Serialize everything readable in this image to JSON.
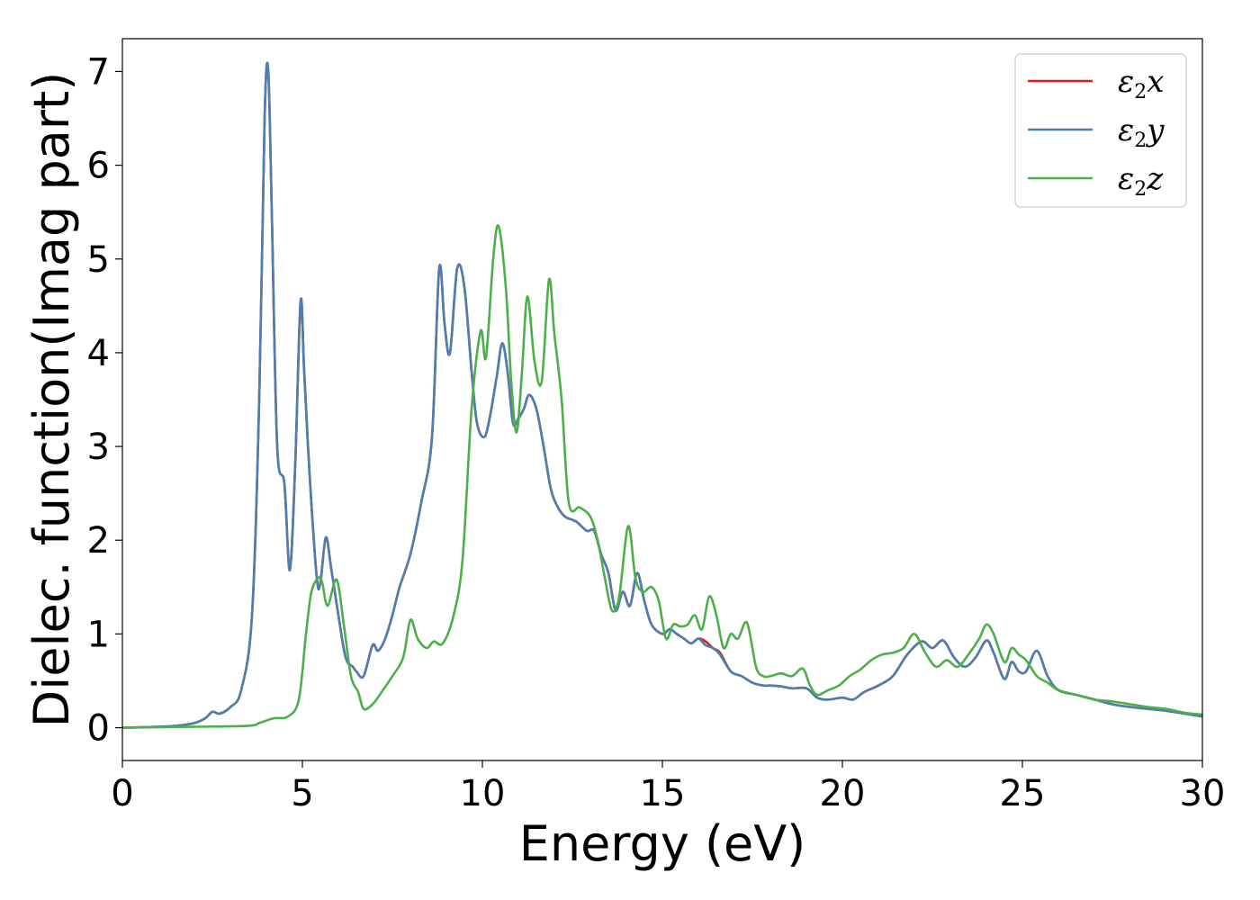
{
  "chart_data": {
    "type": "line",
    "xlabel": "Energy (eV)",
    "ylabel": "Dielec. function(Imag part)",
    "xlim": [
      0,
      30
    ],
    "ylim": [
      -0.35,
      7.35
    ],
    "xticks": [
      0,
      5,
      10,
      15,
      20,
      25,
      30
    ],
    "yticks": [
      0,
      1,
      2,
      3,
      4,
      5,
      6,
      7
    ],
    "grid": false,
    "legend_position": "top-right",
    "series": [
      {
        "name": "ε₂x",
        "legend_base": "ε",
        "legend_sub": "2",
        "legend_tail": "x",
        "color": "#e41a1c",
        "x": [
          0,
          1,
          1.5,
          2,
          2.3,
          2.5,
          2.7,
          3.0,
          3.3,
          3.6,
          3.8,
          3.95,
          4.05,
          4.15,
          4.3,
          4.5,
          4.65,
          4.8,
          4.95,
          5.05,
          5.2,
          5.4,
          5.5,
          5.65,
          5.8,
          6.0,
          6.2,
          6.4,
          6.5,
          6.7,
          6.95,
          7.1,
          7.3,
          7.5,
          7.7,
          8.0,
          8.3,
          8.6,
          8.8,
          8.95,
          9.1,
          9.3,
          9.5,
          9.7,
          9.85,
          10.05,
          10.2,
          10.4,
          10.55,
          10.7,
          10.85,
          11.0,
          11.15,
          11.3,
          11.5,
          11.7,
          11.9,
          12.1,
          12.3,
          12.6,
          12.9,
          13.1,
          13.3,
          13.5,
          13.7,
          13.9,
          14.1,
          14.3,
          14.5,
          14.7,
          15.0,
          15.2,
          15.4,
          15.6,
          15.8,
          16.0,
          16.2,
          16.4,
          16.6,
          16.9,
          17.2,
          17.5,
          17.8,
          18.0,
          18.3,
          18.6,
          19.0,
          19.3,
          19.6,
          20.0,
          20.3,
          20.6,
          21.0,
          21.4,
          21.8,
          22.2,
          22.5,
          22.8,
          23.1,
          23.4,
          23.7,
          24.0,
          24.2,
          24.5,
          24.7,
          24.9,
          25.1,
          25.4,
          25.7,
          26.0,
          26.5,
          27.0,
          27.5,
          28.0,
          28.5,
          29.0,
          29.5,
          30.0
        ],
        "y": [
          0.0,
          0.01,
          0.02,
          0.05,
          0.1,
          0.17,
          0.15,
          0.22,
          0.4,
          1.2,
          3.5,
          6.5,
          7.02,
          5.5,
          3.0,
          2.6,
          1.68,
          2.8,
          4.55,
          3.8,
          2.7,
          1.6,
          1.55,
          2.03,
          1.7,
          1.2,
          0.75,
          0.65,
          0.6,
          0.55,
          0.88,
          0.82,
          0.95,
          1.2,
          1.5,
          1.85,
          2.4,
          3.1,
          4.9,
          4.3,
          4.0,
          4.9,
          4.7,
          3.8,
          3.25,
          3.1,
          3.3,
          3.75,
          4.1,
          3.8,
          3.25,
          3.3,
          3.4,
          3.55,
          3.4,
          3.0,
          2.55,
          2.35,
          2.25,
          2.2,
          2.1,
          2.1,
          1.85,
          1.65,
          1.25,
          1.45,
          1.3,
          1.65,
          1.35,
          1.1,
          1.0,
          1.05,
          1.0,
          0.95,
          0.9,
          0.95,
          0.92,
          0.85,
          0.8,
          0.6,
          0.55,
          0.48,
          0.45,
          0.45,
          0.44,
          0.42,
          0.42,
          0.32,
          0.3,
          0.32,
          0.3,
          0.38,
          0.45,
          0.55,
          0.78,
          0.92,
          0.85,
          0.93,
          0.75,
          0.65,
          0.75,
          0.93,
          0.8,
          0.52,
          0.7,
          0.6,
          0.6,
          0.82,
          0.55,
          0.4,
          0.35,
          0.3,
          0.25,
          0.22,
          0.2,
          0.18,
          0.15,
          0.12
        ]
      },
      {
        "name": "ε₂y",
        "legend_base": "ε",
        "legend_sub": "2",
        "legend_tail": "y",
        "color": "#4a7fb0",
        "x": [
          0,
          1,
          1.5,
          2,
          2.3,
          2.5,
          2.7,
          3.0,
          3.3,
          3.6,
          3.8,
          3.95,
          4.05,
          4.15,
          4.3,
          4.5,
          4.65,
          4.8,
          4.95,
          5.05,
          5.2,
          5.4,
          5.5,
          5.65,
          5.8,
          6.0,
          6.2,
          6.4,
          6.5,
          6.7,
          6.95,
          7.1,
          7.3,
          7.5,
          7.7,
          8.0,
          8.3,
          8.6,
          8.8,
          8.95,
          9.1,
          9.3,
          9.5,
          9.7,
          9.85,
          10.05,
          10.2,
          10.4,
          10.55,
          10.7,
          10.85,
          11.0,
          11.15,
          11.3,
          11.5,
          11.7,
          11.9,
          12.1,
          12.3,
          12.6,
          12.9,
          13.1,
          13.3,
          13.5,
          13.7,
          13.9,
          14.1,
          14.3,
          14.5,
          14.7,
          15.0,
          15.2,
          15.4,
          15.6,
          15.8,
          16.0,
          16.2,
          16.4,
          16.6,
          16.9,
          17.2,
          17.5,
          17.8,
          18.0,
          18.3,
          18.6,
          19.0,
          19.3,
          19.6,
          20.0,
          20.3,
          20.6,
          21.0,
          21.4,
          21.8,
          22.2,
          22.5,
          22.8,
          23.1,
          23.4,
          23.7,
          24.0,
          24.2,
          24.5,
          24.7,
          24.9,
          25.1,
          25.4,
          25.7,
          26.0,
          26.5,
          27.0,
          27.5,
          28.0,
          28.5,
          29.0,
          29.5,
          30.0
        ],
        "y": [
          0.0,
          0.01,
          0.02,
          0.05,
          0.1,
          0.17,
          0.15,
          0.22,
          0.4,
          1.2,
          3.5,
          6.5,
          7.02,
          5.5,
          3.0,
          2.6,
          1.68,
          2.8,
          4.55,
          3.8,
          2.7,
          1.6,
          1.55,
          2.03,
          1.7,
          1.2,
          0.75,
          0.65,
          0.6,
          0.55,
          0.88,
          0.82,
          0.95,
          1.2,
          1.5,
          1.85,
          2.4,
          3.1,
          4.9,
          4.3,
          4.0,
          4.9,
          4.7,
          3.8,
          3.25,
          3.1,
          3.3,
          3.75,
          4.1,
          3.8,
          3.25,
          3.3,
          3.4,
          3.55,
          3.4,
          3.0,
          2.55,
          2.35,
          2.25,
          2.2,
          2.1,
          2.1,
          1.85,
          1.65,
          1.25,
          1.45,
          1.3,
          1.65,
          1.35,
          1.1,
          1.0,
          1.05,
          1.0,
          0.95,
          0.9,
          0.95,
          0.88,
          0.85,
          0.78,
          0.6,
          0.55,
          0.48,
          0.45,
          0.45,
          0.44,
          0.42,
          0.42,
          0.32,
          0.3,
          0.32,
          0.3,
          0.38,
          0.45,
          0.55,
          0.78,
          0.92,
          0.85,
          0.93,
          0.75,
          0.65,
          0.75,
          0.93,
          0.8,
          0.52,
          0.7,
          0.6,
          0.6,
          0.82,
          0.55,
          0.4,
          0.35,
          0.3,
          0.25,
          0.22,
          0.2,
          0.18,
          0.15,
          0.12
        ]
      },
      {
        "name": "ε₂z",
        "legend_base": "ε",
        "legend_sub": "2",
        "legend_tail": "z",
        "color": "#4daf4a",
        "x": [
          0,
          2,
          3.5,
          3.8,
          4.2,
          4.6,
          4.9,
          5.1,
          5.25,
          5.45,
          5.55,
          5.7,
          5.95,
          6.15,
          6.35,
          6.55,
          6.7,
          6.95,
          7.2,
          7.5,
          7.8,
          8.0,
          8.2,
          8.45,
          8.65,
          8.9,
          9.2,
          9.45,
          9.7,
          9.95,
          10.1,
          10.3,
          10.45,
          10.65,
          10.8,
          10.95,
          11.1,
          11.25,
          11.45,
          11.65,
          11.85,
          12.0,
          12.2,
          12.4,
          12.7,
          13.0,
          13.2,
          13.4,
          13.6,
          13.8,
          14.05,
          14.25,
          14.45,
          14.7,
          14.9,
          15.1,
          15.3,
          15.5,
          15.7,
          15.9,
          16.1,
          16.3,
          16.5,
          16.7,
          16.9,
          17.1,
          17.35,
          17.6,
          17.8,
          18.0,
          18.3,
          18.6,
          18.9,
          19.1,
          19.3,
          19.6,
          19.9,
          20.2,
          20.5,
          20.8,
          21.1,
          21.4,
          21.7,
          22.0,
          22.3,
          22.6,
          22.9,
          23.2,
          23.5,
          23.8,
          24.0,
          24.2,
          24.5,
          24.7,
          24.9,
          25.1,
          25.4,
          25.7,
          26.0,
          26.5,
          27.0,
          27.5,
          28.0,
          28.5,
          29.0,
          29.5,
          30.0
        ],
        "y": [
          0.0,
          0.01,
          0.02,
          0.05,
          0.1,
          0.12,
          0.3,
          1.0,
          1.45,
          1.6,
          1.55,
          1.3,
          1.58,
          1.1,
          0.55,
          0.38,
          0.2,
          0.25,
          0.38,
          0.55,
          0.75,
          1.15,
          0.95,
          0.85,
          0.92,
          0.9,
          1.2,
          1.8,
          3.4,
          4.23,
          3.95,
          5.0,
          5.35,
          4.7,
          3.7,
          3.15,
          3.8,
          4.6,
          3.9,
          3.7,
          4.78,
          4.2,
          3.5,
          2.4,
          2.35,
          2.25,
          2.0,
          1.6,
          1.25,
          1.4,
          2.15,
          1.6,
          1.45,
          1.5,
          1.35,
          0.95,
          1.1,
          1.08,
          1.1,
          1.2,
          1.05,
          1.4,
          1.2,
          0.85,
          1.0,
          0.95,
          1.12,
          0.65,
          0.55,
          0.55,
          0.58,
          0.55,
          0.63,
          0.45,
          0.35,
          0.4,
          0.45,
          0.55,
          0.62,
          0.72,
          0.78,
          0.8,
          0.85,
          1.0,
          0.8,
          0.65,
          0.72,
          0.65,
          0.78,
          0.95,
          1.1,
          1.0,
          0.7,
          0.85,
          0.78,
          0.72,
          0.55,
          0.48,
          0.4,
          0.35,
          0.3,
          0.28,
          0.25,
          0.22,
          0.2,
          0.16,
          0.14
        ]
      }
    ]
  }
}
